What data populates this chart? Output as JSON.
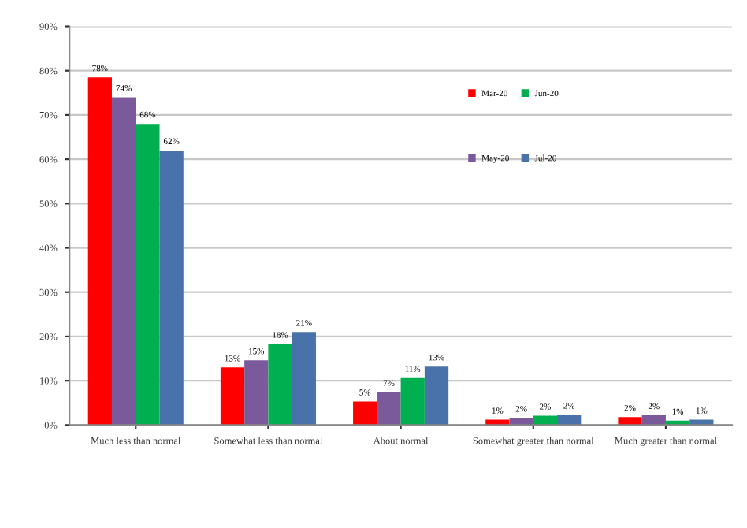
{
  "chart_data": {
    "type": "bar",
    "categories": [
      "Much less than normal",
      "Somewhat less than normal",
      "About normal",
      "Somewhat greater than normal",
      "Much greater than normal"
    ],
    "series": [
      {
        "name": "Mar-20",
        "color": "#ff0000",
        "values": [
          78.5,
          13,
          5.3,
          1.2,
          1.8
        ],
        "value_labels": [
          "78%",
          "13%",
          "5%",
          "1%",
          "2%"
        ]
      },
      {
        "name": "May-20",
        "color": "#7a5a9a",
        "values": [
          74,
          14.6,
          7.4,
          1.6,
          2.2
        ],
        "value_labels": [
          "74%",
          "15%",
          "7%",
          "2%",
          "2%"
        ]
      },
      {
        "name": "Jun-20",
        "color": "#00b050",
        "values": [
          68,
          18.3,
          10.6,
          2.1,
          1.0
        ],
        "value_labels": [
          "68%",
          "18%",
          "11%",
          "2%",
          "1%"
        ]
      },
      {
        "name": "Jul-20",
        "color": "#4a72aa",
        "values": [
          62,
          21,
          13.2,
          2.3,
          1.2
        ],
        "value_labels": [
          "62%",
          "21%",
          "13%",
          "2%",
          "1%"
        ]
      }
    ],
    "ylim": [
      0,
      90
    ],
    "yticks": [
      {
        "value": 0,
        "label": "0%"
      },
      {
        "value": 10,
        "label": "10%"
      },
      {
        "value": 20,
        "label": "20%"
      },
      {
        "value": 30,
        "label": "30%"
      },
      {
        "value": 40,
        "label": "40%"
      },
      {
        "value": 50,
        "label": "50%"
      },
      {
        "value": 60,
        "label": "60%"
      },
      {
        "value": 70,
        "label": "70%"
      },
      {
        "value": 80,
        "label": "80%"
      },
      {
        "value": 90,
        "label": "90%"
      }
    ],
    "grid": "y",
    "legend": "top right"
  }
}
